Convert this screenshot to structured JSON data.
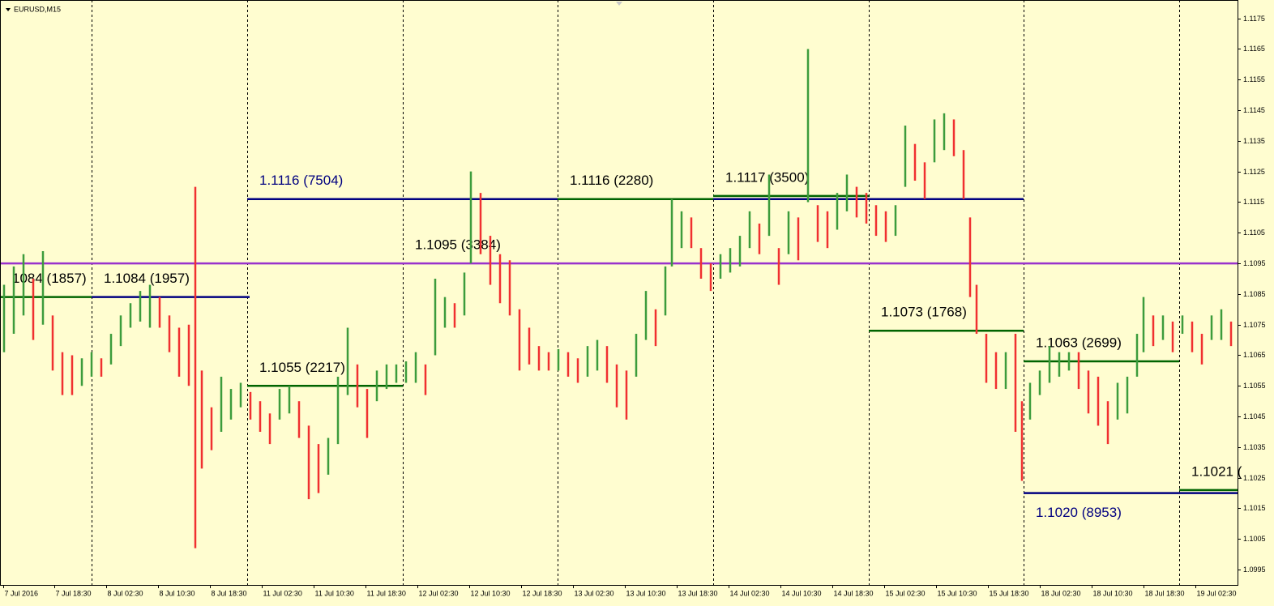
{
  "chart_data": {
    "type": "ohlc",
    "title": "EURUSD,M15",
    "background": "#fffdd0",
    "up_color": "#3c9c3c",
    "down_color": "#f03030",
    "xlim": [
      0,
      763.5
    ],
    "ylim": [
      1.099,
      1.1181
    ],
    "yticks": [
      1.0995,
      1.1005,
      1.1015,
      1.1025,
      1.1035,
      1.1045,
      1.1055,
      1.1065,
      1.1075,
      1.1085,
      1.1095,
      1.1105,
      1.1115,
      1.1125,
      1.1135,
      1.1145,
      1.1155,
      1.1165,
      1.1175
    ],
    "xticks": [
      {
        "value": 2,
        "label": "7 Jul 2016"
      },
      {
        "value": 33.5,
        "label": "7 Jul 18:30"
      },
      {
        "value": 65.5,
        "label": "8 Jul 02:30"
      },
      {
        "value": 97.5,
        "label": "8 Jul 10:30"
      },
      {
        "value": 129.5,
        "label": "8 Jul 18:30"
      },
      {
        "value": 161.5,
        "label": "11 Jul 02:30"
      },
      {
        "value": 193.5,
        "label": "11 Jul 10:30"
      },
      {
        "value": 225.5,
        "label": "11 Jul 18:30"
      },
      {
        "value": 257.5,
        "label": "12 Jul 02:30"
      },
      {
        "value": 289.5,
        "label": "12 Jul 10:30"
      },
      {
        "value": 321.5,
        "label": "12 Jul 18:30"
      },
      {
        "value": 353.5,
        "label": "13 Jul 02:30"
      },
      {
        "value": 385.5,
        "label": "13 Jul 10:30"
      },
      {
        "value": 417.5,
        "label": "13 Jul 18:30"
      },
      {
        "value": 449.5,
        "label": "14 Jul 02:30"
      },
      {
        "value": 481.5,
        "label": "14 Jul 10:30"
      },
      {
        "value": 513.5,
        "label": "14 Jul 18:30"
      },
      {
        "value": 545.5,
        "label": "15 Jul 02:30"
      },
      {
        "value": 577.5,
        "label": "15 Jul 10:30"
      },
      {
        "value": 609.5,
        "label": "15 Jul 18:30"
      },
      {
        "value": 641.5,
        "label": "18 Jul 02:30"
      },
      {
        "value": 673.5,
        "label": "18 Jul 10:30"
      },
      {
        "value": 705.5,
        "label": "18 Jul 18:30"
      },
      {
        "value": 737.5,
        "label": "19 Jul 02:30"
      }
    ],
    "separators": [
      56.5,
      152.5,
      248.5,
      344,
      440,
      536,
      631.5,
      727.5
    ],
    "x": [
      2.5,
      8.5,
      14.5,
      20.5,
      26.5,
      32.5,
      38.5,
      44.5,
      50.5,
      56.5,
      62.5,
      68.5,
      74.5,
      80.5,
      86.5,
      92.5,
      98.5,
      104.5,
      110.5,
      116.5,
      120.5,
      124.5,
      130.5,
      136.5,
      142.5,
      148.5,
      154.5,
      160.5,
      166.5,
      172.5,
      178.5,
      184.5,
      190.5,
      196.5,
      202.5,
      208.5,
      214.5,
      220.5,
      226.5,
      232.5,
      238.5,
      244.5,
      250.5,
      256.5,
      262.5,
      268.5,
      274.5,
      280.5,
      286.5,
      290.5,
      296.5,
      302.5,
      308.5,
      314.5,
      320.5,
      326.5,
      332.5,
      338.5,
      344.5,
      350.5,
      356.5,
      362.5,
      368.5,
      374.5,
      380.5,
      386.5,
      392.5,
      398.5,
      404.5,
      410.5,
      414.5,
      420.5,
      426.5,
      432.5,
      438.5,
      444.5,
      450.5,
      456.5,
      462.5,
      468.5,
      474.5,
      480.5,
      486.5,
      492.5,
      498.5,
      504.5,
      510.5,
      516.5,
      522.5,
      528.5,
      534.5,
      540.5,
      546.5,
      552.5,
      558.5,
      564.5,
      570.5,
      576.5,
      582.5,
      588.5,
      594.5,
      598.5,
      602.5,
      608.5,
      614.5,
      620.5,
      626.5,
      630.5,
      635.5,
      641.5,
      647.5,
      653.5,
      659.5,
      665.5,
      671.5,
      677.5,
      683.5,
      689.5,
      695.5,
      701.5,
      705.5,
      711.5,
      717.5,
      723.5,
      729.5,
      735.5,
      741.5,
      747.5,
      753.5,
      759.5
    ],
    "high": [
      1.1088,
      1.1094,
      1.1098,
      1.109,
      1.1099,
      1.1078,
      1.1066,
      1.1065,
      1.1064,
      1.1066,
      1.1064,
      1.1072,
      1.1078,
      1.1082,
      1.1086,
      1.1088,
      1.1084,
      1.1078,
      1.1074,
      1.1075,
      1.112,
      1.106,
      1.1048,
      1.1058,
      1.1054,
      1.1056,
      1.1053,
      1.105,
      1.1046,
      1.1054,
      1.1055,
      1.105,
      1.1042,
      1.1036,
      1.1038,
      1.1058,
      1.1074,
      1.1062,
      1.1054,
      1.106,
      1.1062,
      1.1062,
      1.1063,
      1.1066,
      1.1062,
      1.109,
      1.1084,
      1.1082,
      1.1092,
      1.1125,
      1.1118,
      1.1104,
      1.1098,
      1.1096,
      1.108,
      1.1074,
      1.1068,
      1.1066,
      1.1067,
      1.1066,
      1.1064,
      1.1068,
      1.107,
      1.1068,
      1.1062,
      1.106,
      1.1072,
      1.1086,
      1.108,
      1.1094,
      1.1116,
      1.1112,
      1.111,
      1.11,
      1.1095,
      1.1098,
      1.11,
      1.1104,
      1.1112,
      1.1108,
      1.1124,
      1.11,
      1.1112,
      1.111,
      1.1165,
      1.1114,
      1.1112,
      1.1118,
      1.1124,
      1.112,
      1.1118,
      1.1114,
      1.1112,
      1.1114,
      1.114,
      1.1134,
      1.1128,
      1.1142,
      1.1144,
      1.1142,
      1.1132,
      1.111,
      1.1088,
      1.1072,
      1.1066,
      1.1066,
      1.1072,
      1.105,
      1.1056,
      1.106,
      1.1068,
      1.1066,
      1.1066,
      1.1066,
      1.106,
      1.1058,
      1.105,
      1.1056,
      1.1058,
      1.1072,
      1.1084,
      1.1078,
      1.1078,
      1.1076,
      1.1078,
      1.1076,
      1.1072,
      1.1078,
      1.108,
      1.1076
    ],
    "low": [
      1.1066,
      1.1072,
      1.1078,
      1.107,
      1.1075,
      1.106,
      1.1052,
      1.1052,
      1.1055,
      1.1058,
      1.1058,
      1.1062,
      1.1068,
      1.1074,
      1.1076,
      1.1074,
      1.1074,
      1.1066,
      1.1058,
      1.1055,
      1.1002,
      1.1028,
      1.1034,
      1.104,
      1.1044,
      1.1048,
      1.1044,
      1.104,
      1.1036,
      1.1044,
      1.1046,
      1.1038,
      1.1018,
      1.102,
      1.1026,
      1.1036,
      1.1052,
      1.1048,
      1.1038,
      1.105,
      1.1054,
      1.1056,
      1.1056,
      1.1056,
      1.1052,
      1.1065,
      1.1074,
      1.1074,
      1.1078,
      1.1095,
      1.1098,
      1.1088,
      1.1082,
      1.1078,
      1.106,
      1.1062,
      1.106,
      1.106,
      1.106,
      1.1058,
      1.1056,
      1.1058,
      1.106,
      1.1056,
      1.1048,
      1.1044,
      1.1058,
      1.107,
      1.1068,
      1.1078,
      1.1094,
      1.11,
      1.11,
      1.109,
      1.1086,
      1.109,
      1.1092,
      1.1094,
      1.11,
      1.1098,
      1.1104,
      1.1088,
      1.1098,
      1.1096,
      1.1115,
      1.1102,
      1.11,
      1.1106,
      1.1112,
      1.111,
      1.1108,
      1.1104,
      1.1102,
      1.1104,
      1.112,
      1.1122,
      1.1116,
      1.1128,
      1.1132,
      1.113,
      1.1116,
      1.1084,
      1.1072,
      1.1056,
      1.1054,
      1.1054,
      1.104,
      1.1024,
      1.1044,
      1.1052,
      1.1056,
      1.1058,
      1.106,
      1.1054,
      1.1046,
      1.1042,
      1.1036,
      1.1044,
      1.1046,
      1.1058,
      1.1066,
      1.1068,
      1.107,
      1.1066,
      1.1072,
      1.1066,
      1.1062,
      1.107,
      1.107,
      1.1068
    ],
    "levels": [
      {
        "label": "1084 (1857)",
        "value": 1.1084,
        "x0": 0,
        "x1": 56.5,
        "color": "#006400",
        "label_color": "#000000"
      },
      {
        "label": "1.1084 (1957)",
        "value": 1.1084,
        "x0": 56.5,
        "x1": 154,
        "color": "#000080",
        "label_color": "#000000"
      },
      {
        "label": "1.1095 (3384)",
        "value": 1.1095,
        "x0": 248.5,
        "x1": 763.5,
        "color": "#9932cc",
        "label_color": "#000000",
        "extend": true
      },
      {
        "label": "1.1116 (7504)",
        "value": 1.1116,
        "x0": 152.5,
        "x1": 631.5,
        "color": "#000080",
        "label_color": "#000080"
      },
      {
        "label": "1.1055 (2217)",
        "value": 1.1055,
        "x0": 152.5,
        "x1": 248.5,
        "color": "#006400",
        "label_color": "#000000"
      },
      {
        "label": "1.1116 (2280)",
        "value": 1.1116,
        "x0": 344,
        "x1": 440,
        "color": "#006400",
        "label_color": "#000000"
      },
      {
        "label": "1.1117 (3500)",
        "value": 1.1117,
        "x0": 440,
        "x1": 536,
        "color": "#006400",
        "label_color": "#000000"
      },
      {
        "label": "1.1073 (1768)",
        "value": 1.1073,
        "x0": 536,
        "x1": 631.5,
        "color": "#006400",
        "label_color": "#000000"
      },
      {
        "label": "1.1063 (2699)",
        "value": 1.1063,
        "x0": 631.5,
        "x1": 727.5,
        "color": "#006400",
        "label_color": "#000000"
      },
      {
        "label": "1.1020 (8953)",
        "value": 1.102,
        "x0": 631.5,
        "x1": 763.5,
        "color": "#000080",
        "label_color": "#000080",
        "label_below": true
      },
      {
        "label": "1.1021 (",
        "value": 1.1021,
        "x0": 727.5,
        "x1": 763.5,
        "color": "#006400",
        "label_color": "#000000"
      }
    ]
  }
}
